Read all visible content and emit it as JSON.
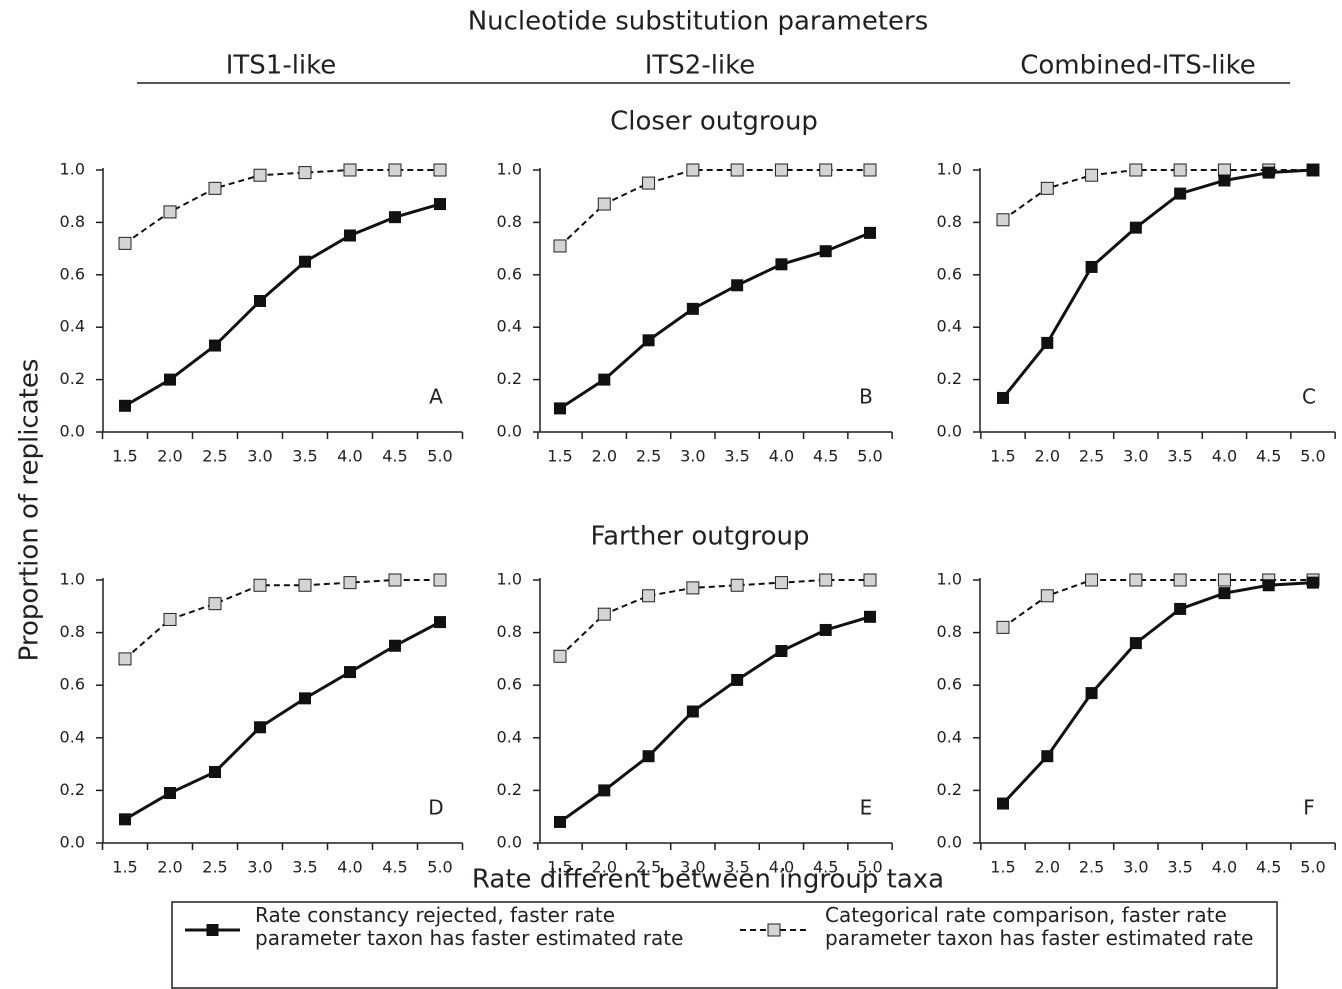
{
  "title": "Nucleotide substitution parameters",
  "column_labels": [
    "ITS1-like",
    "ITS2-like",
    "Combined-ITS-like"
  ],
  "row_labels": [
    "Closer outgroup",
    "Farther outgroup"
  ],
  "ylabel": "Proportion of replicates",
  "xlabel": "Rate different between ingroup taxa",
  "legend": [
    {
      "name": "Rate constancy rejected, faster rate parameter taxon has faster estimated rate",
      "color": "#111111",
      "marker_color": "#111111",
      "dashed": false
    },
    {
      "name": "Categorical rate comparison, faster rate parameter taxon has faster estimated rate",
      "color": "#111111",
      "marker_color": "#d4d4d4",
      "dashed": true
    }
  ],
  "chart_data": [
    {
      "type": "line",
      "annotation": "A",
      "categories": [
        "1.5",
        "2.0",
        "2.5",
        "3.0",
        "3.5",
        "4.0",
        "4.5",
        "5.0"
      ],
      "series": [
        {
          "values": [
            0.1,
            0.2,
            0.33,
            0.5,
            0.65,
            0.75,
            0.82,
            0.87
          ]
        },
        {
          "values": [
            0.72,
            0.84,
            0.93,
            0.98,
            0.99,
            1.0,
            1.0,
            1.0
          ]
        }
      ],
      "ylim": [
        0,
        1
      ],
      "yticks": [
        {
          "value": 0,
          "label": "0.0"
        },
        {
          "value": 0.2,
          "label": "0.2"
        },
        {
          "value": 0.4,
          "label": "0.4"
        },
        {
          "value": 0.6,
          "label": "0.6"
        },
        {
          "value": 0.8,
          "label": "0.8"
        },
        {
          "value": 1,
          "label": "1.0"
        }
      ]
    },
    {
      "type": "line",
      "annotation": "B",
      "categories": [
        "1.5",
        "2.0",
        "2.5",
        "3.0",
        "3.5",
        "4.0",
        "4.5",
        "5.0"
      ],
      "series": [
        {
          "values": [
            0.09,
            0.2,
            0.35,
            0.47,
            0.56,
            0.64,
            0.69,
            0.76
          ]
        },
        {
          "values": [
            0.71,
            0.87,
            0.95,
            1.0,
            1.0,
            1.0,
            1.0,
            1.0
          ]
        }
      ],
      "ylim": [
        0,
        1
      ],
      "yticks": [
        {
          "value": 0,
          "label": "0.0"
        },
        {
          "value": 0.2,
          "label": "0.2"
        },
        {
          "value": 0.4,
          "label": "0.4"
        },
        {
          "value": 0.6,
          "label": "0.6"
        },
        {
          "value": 0.8,
          "label": "0.8"
        },
        {
          "value": 1,
          "label": "1.0"
        }
      ]
    },
    {
      "type": "line",
      "annotation": "C",
      "categories": [
        "1.5",
        "2.0",
        "2.5",
        "3.0",
        "3.5",
        "4.0",
        "4.5",
        "5.0"
      ],
      "series": [
        {
          "values": [
            0.13,
            0.34,
            0.63,
            0.78,
            0.91,
            0.96,
            0.99,
            1.0
          ]
        },
        {
          "values": [
            0.81,
            0.93,
            0.98,
            1.0,
            1.0,
            1.0,
            1.0,
            1.0
          ]
        }
      ],
      "ylim": [
        0,
        1
      ],
      "yticks": [
        {
          "value": 0,
          "label": "0.0"
        },
        {
          "value": 0.2,
          "label": "0.2"
        },
        {
          "value": 0.4,
          "label": "0.4"
        },
        {
          "value": 0.6,
          "label": "0.6"
        },
        {
          "value": 0.8,
          "label": "0.8"
        },
        {
          "value": 1,
          "label": "1.0"
        }
      ]
    },
    {
      "type": "line",
      "annotation": "D",
      "categories": [
        "1.5",
        "2.0",
        "2.5",
        "3.0",
        "3.5",
        "4.0",
        "4.5",
        "5.0"
      ],
      "series": [
        {
          "values": [
            0.09,
            0.19,
            0.27,
            0.44,
            0.55,
            0.65,
            0.75,
            0.84
          ]
        },
        {
          "values": [
            0.7,
            0.85,
            0.91,
            0.98,
            0.98,
            0.99,
            1.0,
            1.0
          ]
        }
      ],
      "ylim": [
        0,
        1
      ],
      "yticks": [
        {
          "value": 0,
          "label": "0.0"
        },
        {
          "value": 0.2,
          "label": "0.2"
        },
        {
          "value": 0.4,
          "label": "0.4"
        },
        {
          "value": 0.6,
          "label": "0.6"
        },
        {
          "value": 0.8,
          "label": "0.8"
        },
        {
          "value": 1,
          "label": "1.0"
        }
      ]
    },
    {
      "type": "line",
      "annotation": "E",
      "categories": [
        "1.5",
        "2.0",
        "2.5",
        "3.0",
        "3.5",
        "4.0",
        "4.5",
        "5.0"
      ],
      "series": [
        {
          "values": [
            0.08,
            0.2,
            0.33,
            0.5,
            0.62,
            0.73,
            0.81,
            0.86
          ]
        },
        {
          "values": [
            0.71,
            0.87,
            0.94,
            0.97,
            0.98,
            0.99,
            1.0,
            1.0
          ]
        }
      ],
      "ylim": [
        0,
        1
      ],
      "yticks": [
        {
          "value": 0,
          "label": "0.0"
        },
        {
          "value": 0.2,
          "label": "0.2"
        },
        {
          "value": 0.4,
          "label": "0.4"
        },
        {
          "value": 0.6,
          "label": "0.6"
        },
        {
          "value": 0.8,
          "label": "0.8"
        },
        {
          "value": 1,
          "label": "1.0"
        }
      ]
    },
    {
      "type": "line",
      "annotation": "F",
      "categories": [
        "1.5",
        "2.0",
        "2.5",
        "3.0",
        "3.5",
        "4.0",
        "4.5",
        "5.0"
      ],
      "series": [
        {
          "values": [
            0.15,
            0.33,
            0.57,
            0.76,
            0.89,
            0.95,
            0.98,
            0.99
          ]
        },
        {
          "values": [
            0.82,
            0.94,
            1.0,
            1.0,
            1.0,
            1.0,
            1.0,
            1.0
          ]
        }
      ],
      "ylim": [
        0,
        1
      ],
      "yticks": [
        {
          "value": 0,
          "label": "0.0"
        },
        {
          "value": 0.2,
          "label": "0.2"
        },
        {
          "value": 0.4,
          "label": "0.4"
        },
        {
          "value": 0.6,
          "label": "0.6"
        },
        {
          "value": 0.8,
          "label": "0.8"
        },
        {
          "value": 1,
          "label": "1.0"
        }
      ]
    }
  ]
}
